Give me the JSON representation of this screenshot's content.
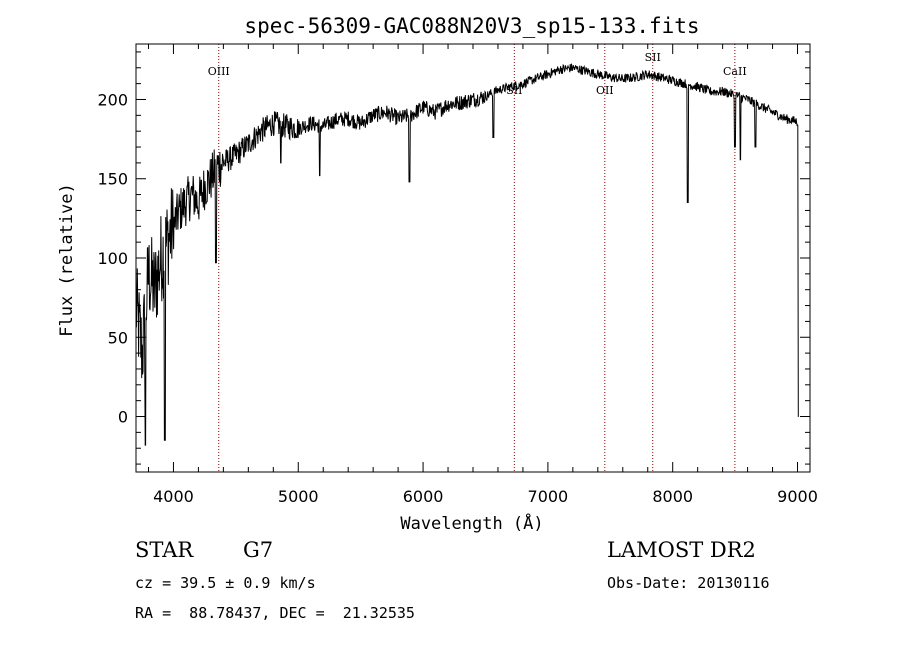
{
  "chart_data": {
    "type": "line",
    "title": "spec-56309-GAC088N20V3_sp15-133.fits",
    "xlabel": "Wavelength (Å)",
    "ylabel": "Flux (relative)",
    "xlim": [
      3700,
      9100
    ],
    "ylim": [
      -35,
      235
    ],
    "xticks": [
      4000,
      5000,
      6000,
      7000,
      8000,
      9000
    ],
    "yticks": [
      0,
      50,
      100,
      150,
      200
    ],
    "grid": false,
    "line_color": "#000000",
    "marker_color": "#8b0000",
    "lines": [
      {
        "name": "OIII",
        "x": 4363,
        "label_pos": "top"
      },
      {
        "name": "SII",
        "x": 6731,
        "label_pos": "mid"
      },
      {
        "name": "OII",
        "x": 7456,
        "label_pos": "mid"
      },
      {
        "name": "SII",
        "x": 7840,
        "label_pos": "high"
      },
      {
        "name": "CaII",
        "x": 8498,
        "label_pos": "top"
      }
    ],
    "spectrum_anchors": {
      "x": [
        3700,
        3750,
        3800,
        3850,
        3900,
        3950,
        4000,
        4050,
        4100,
        4150,
        4200,
        4250,
        4300,
        4350,
        4400,
        4500,
        4600,
        4700,
        4800,
        4900,
        5000,
        5100,
        5200,
        5300,
        5400,
        5500,
        5600,
        5700,
        5800,
        5900,
        6000,
        6100,
        6200,
        6300,
        6400,
        6500,
        6600,
        6700,
        6800,
        6900,
        7000,
        7100,
        7200,
        7300,
        7400,
        7500,
        7600,
        7700,
        7800,
        7900,
        8000,
        8100,
        8200,
        8300,
        8400,
        8500,
        8600,
        8700,
        8800,
        8900,
        9000
      ],
      "y": [
        70,
        40,
        90,
        80,
        100,
        110,
        120,
        130,
        135,
        140,
        135,
        145,
        150,
        158,
        160,
        165,
        172,
        180,
        185,
        183,
        182,
        185,
        183,
        187,
        188,
        185,
        190,
        192,
        188,
        190,
        195,
        192,
        197,
        198,
        200,
        202,
        206,
        208,
        210,
        213,
        216,
        219,
        220,
        218,
        216,
        214,
        213,
        214,
        216,
        214,
        212,
        210,
        208,
        205,
        205,
        203,
        200,
        196,
        192,
        188,
        186
      ]
    },
    "absorption_features": [
      {
        "x": 3775,
        "y": -18
      },
      {
        "x": 3930,
        "y": -15
      },
      {
        "x": 4340,
        "y": 97
      },
      {
        "x": 4860,
        "y": 160
      },
      {
        "x": 5172,
        "y": 152
      },
      {
        "x": 5890,
        "y": 148
      },
      {
        "x": 6563,
        "y": 176
      },
      {
        "x": 8120,
        "y": 135
      },
      {
        "x": 8498,
        "y": 170
      },
      {
        "x": 8542,
        "y": 162
      },
      {
        "x": 8662,
        "y": 170
      },
      {
        "x": 9010,
        "y": 0
      }
    ]
  },
  "info": {
    "class": "STAR",
    "subclass": "G7",
    "survey": "LAMOST DR2",
    "cz": "cz = 39.5 ± 0.9 km/s",
    "obs_date": "Obs-Date: 20130116",
    "radec": "RA =  88.78437, DEC =  21.32535"
  }
}
